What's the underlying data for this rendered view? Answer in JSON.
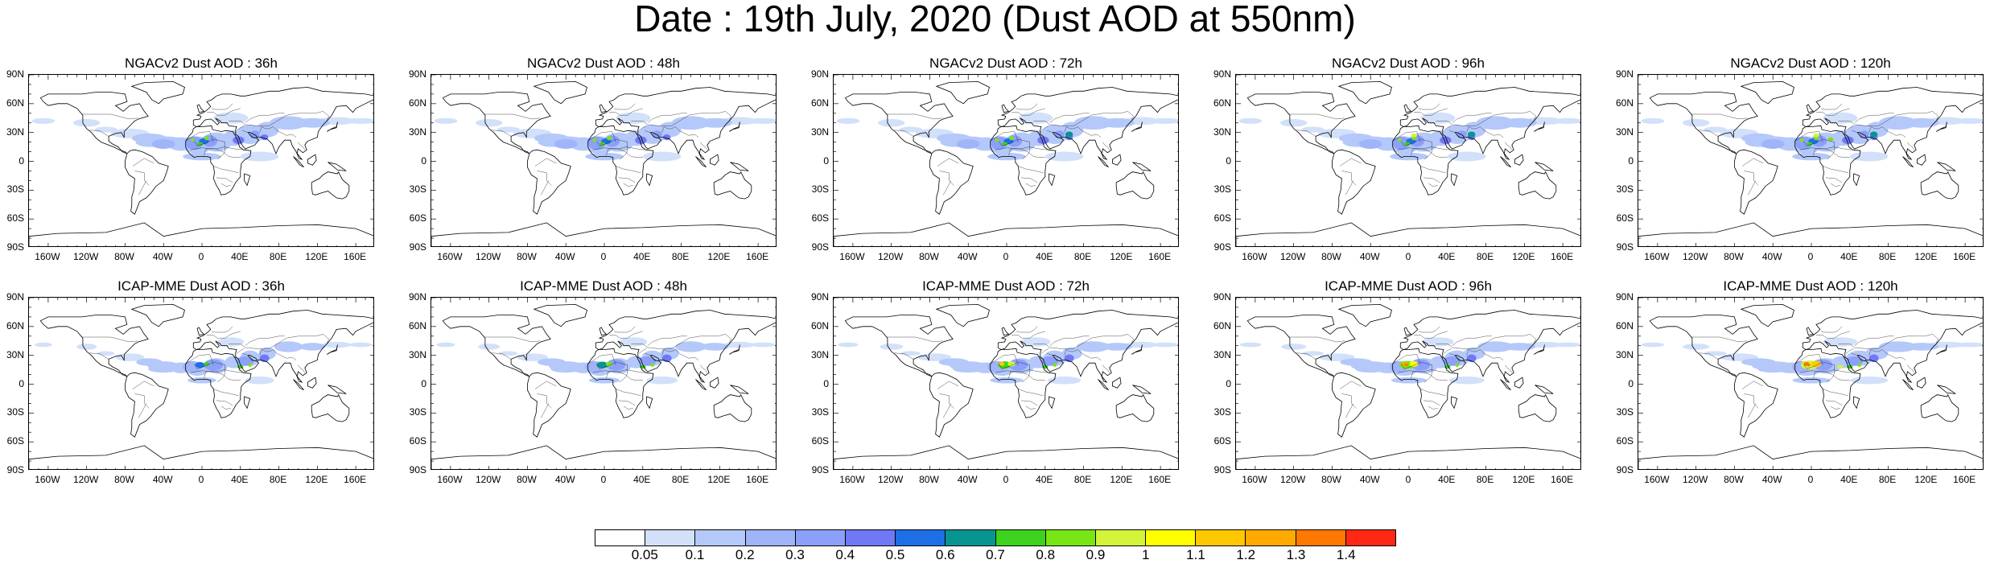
{
  "title": "Date : 19th July, 2020 (Dust AOD at 550nm)",
  "panels": [
    {
      "title": "NGACv2 Dust AOD : 36h"
    },
    {
      "title": "NGACv2 Dust AOD : 48h"
    },
    {
      "title": "NGACv2 Dust AOD : 72h"
    },
    {
      "title": "NGACv2 Dust AOD : 96h"
    },
    {
      "title": "NGACv2 Dust AOD : 120h"
    },
    {
      "title": "ICAP-MME Dust AOD : 36h"
    },
    {
      "title": "ICAP-MME Dust AOD : 48h"
    },
    {
      "title": "ICAP-MME Dust AOD : 72h"
    },
    {
      "title": "ICAP-MME Dust AOD : 96h"
    },
    {
      "title": "ICAP-MME Dust AOD : 120h"
    }
  ],
  "lat_labels": [
    "90N",
    "60N",
    "30N",
    "0",
    "30S",
    "60S",
    "90S"
  ],
  "lon_labels": [
    "160W",
    "120W",
    "80W",
    "40W",
    "0",
    "40E",
    "80E",
    "120E",
    "160E"
  ],
  "colorbar": {
    "labels": [
      "0.05",
      "0.1",
      "0.2",
      "0.3",
      "0.4",
      "0.5",
      "0.6",
      "0.7",
      "0.8",
      "0.9",
      "1",
      "1.1",
      "1.2",
      "1.3",
      "1.4"
    ],
    "colors": [
      "#ffffff",
      "#d2e0fa",
      "#b4c8fa",
      "#a0b4fa",
      "#8ca0fa",
      "#7078f5",
      "#1e6ee6",
      "#089490",
      "#3cd21e",
      "#78e614",
      "#d2f53c",
      "#ffff00",
      "#ffc800",
      "#ffaa00",
      "#ff7800",
      "#ff2814"
    ]
  }
}
